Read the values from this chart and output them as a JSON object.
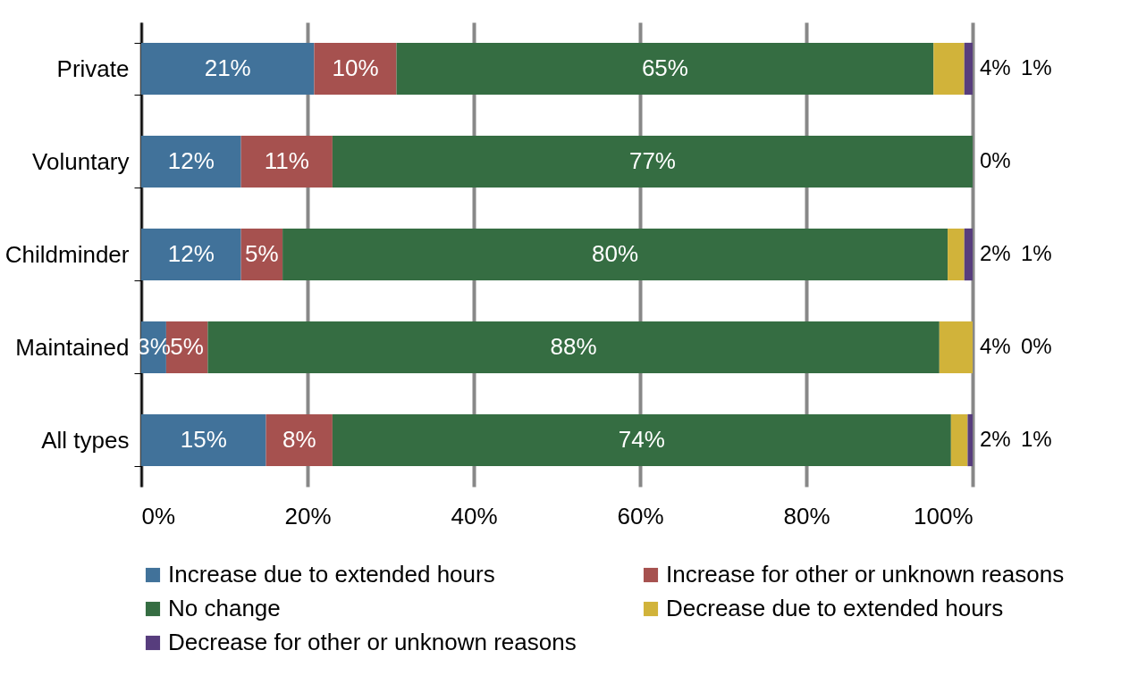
{
  "chart_data": {
    "type": "bar",
    "orientation": "horizontal",
    "stacked": true,
    "categories": [
      "Private",
      "Voluntary",
      "Childminder",
      "Maintained",
      "All types"
    ],
    "series": [
      {
        "name": "Increase due to extended hours",
        "color": "#41729a",
        "values": [
          20.8,
          12,
          12,
          3,
          15
        ],
        "value_labels": [
          "21%",
          "12%",
          "12%",
          "3%",
          "15%"
        ]
      },
      {
        "name": "Increase for other or unknown reasons",
        "color": "#a6514f",
        "values": [
          9.9,
          11,
          5,
          5,
          8
        ],
        "value_labels": [
          "10%",
          "11%",
          "5%",
          "5%",
          "8%"
        ]
      },
      {
        "name": "No change",
        "color": "#356d42",
        "values": [
          64.6,
          77,
          80,
          88,
          74.4
        ],
        "value_labels": [
          "65%",
          "77%",
          "80%",
          "88%",
          "74%"
        ]
      },
      {
        "name": "Decrease due to extended hours",
        "color": "#d1b33a",
        "values": [
          3.7,
          0,
          2,
          4,
          2
        ],
        "value_labels": [
          "4%",
          "0%",
          "2%",
          "4%",
          "2%"
        ]
      },
      {
        "name": "Decrease for other or unknown reasons",
        "color": "#573d7d",
        "values": [
          1,
          0,
          1,
          0,
          0.6
        ],
        "value_labels": [
          "1%",
          null,
          "1%",
          "0%",
          "1%"
        ]
      }
    ],
    "xlim": [
      0,
      100
    ],
    "xticks": [
      {
        "value": 0,
        "label": "0%"
      },
      {
        "value": 20,
        "label": "20%"
      },
      {
        "value": 40,
        "label": "40%"
      },
      {
        "value": 60,
        "label": "60%"
      },
      {
        "value": 80,
        "label": "80%"
      },
      {
        "value": 100,
        "label": "100%"
      }
    ],
    "grid": "x",
    "legend": "bottom"
  }
}
